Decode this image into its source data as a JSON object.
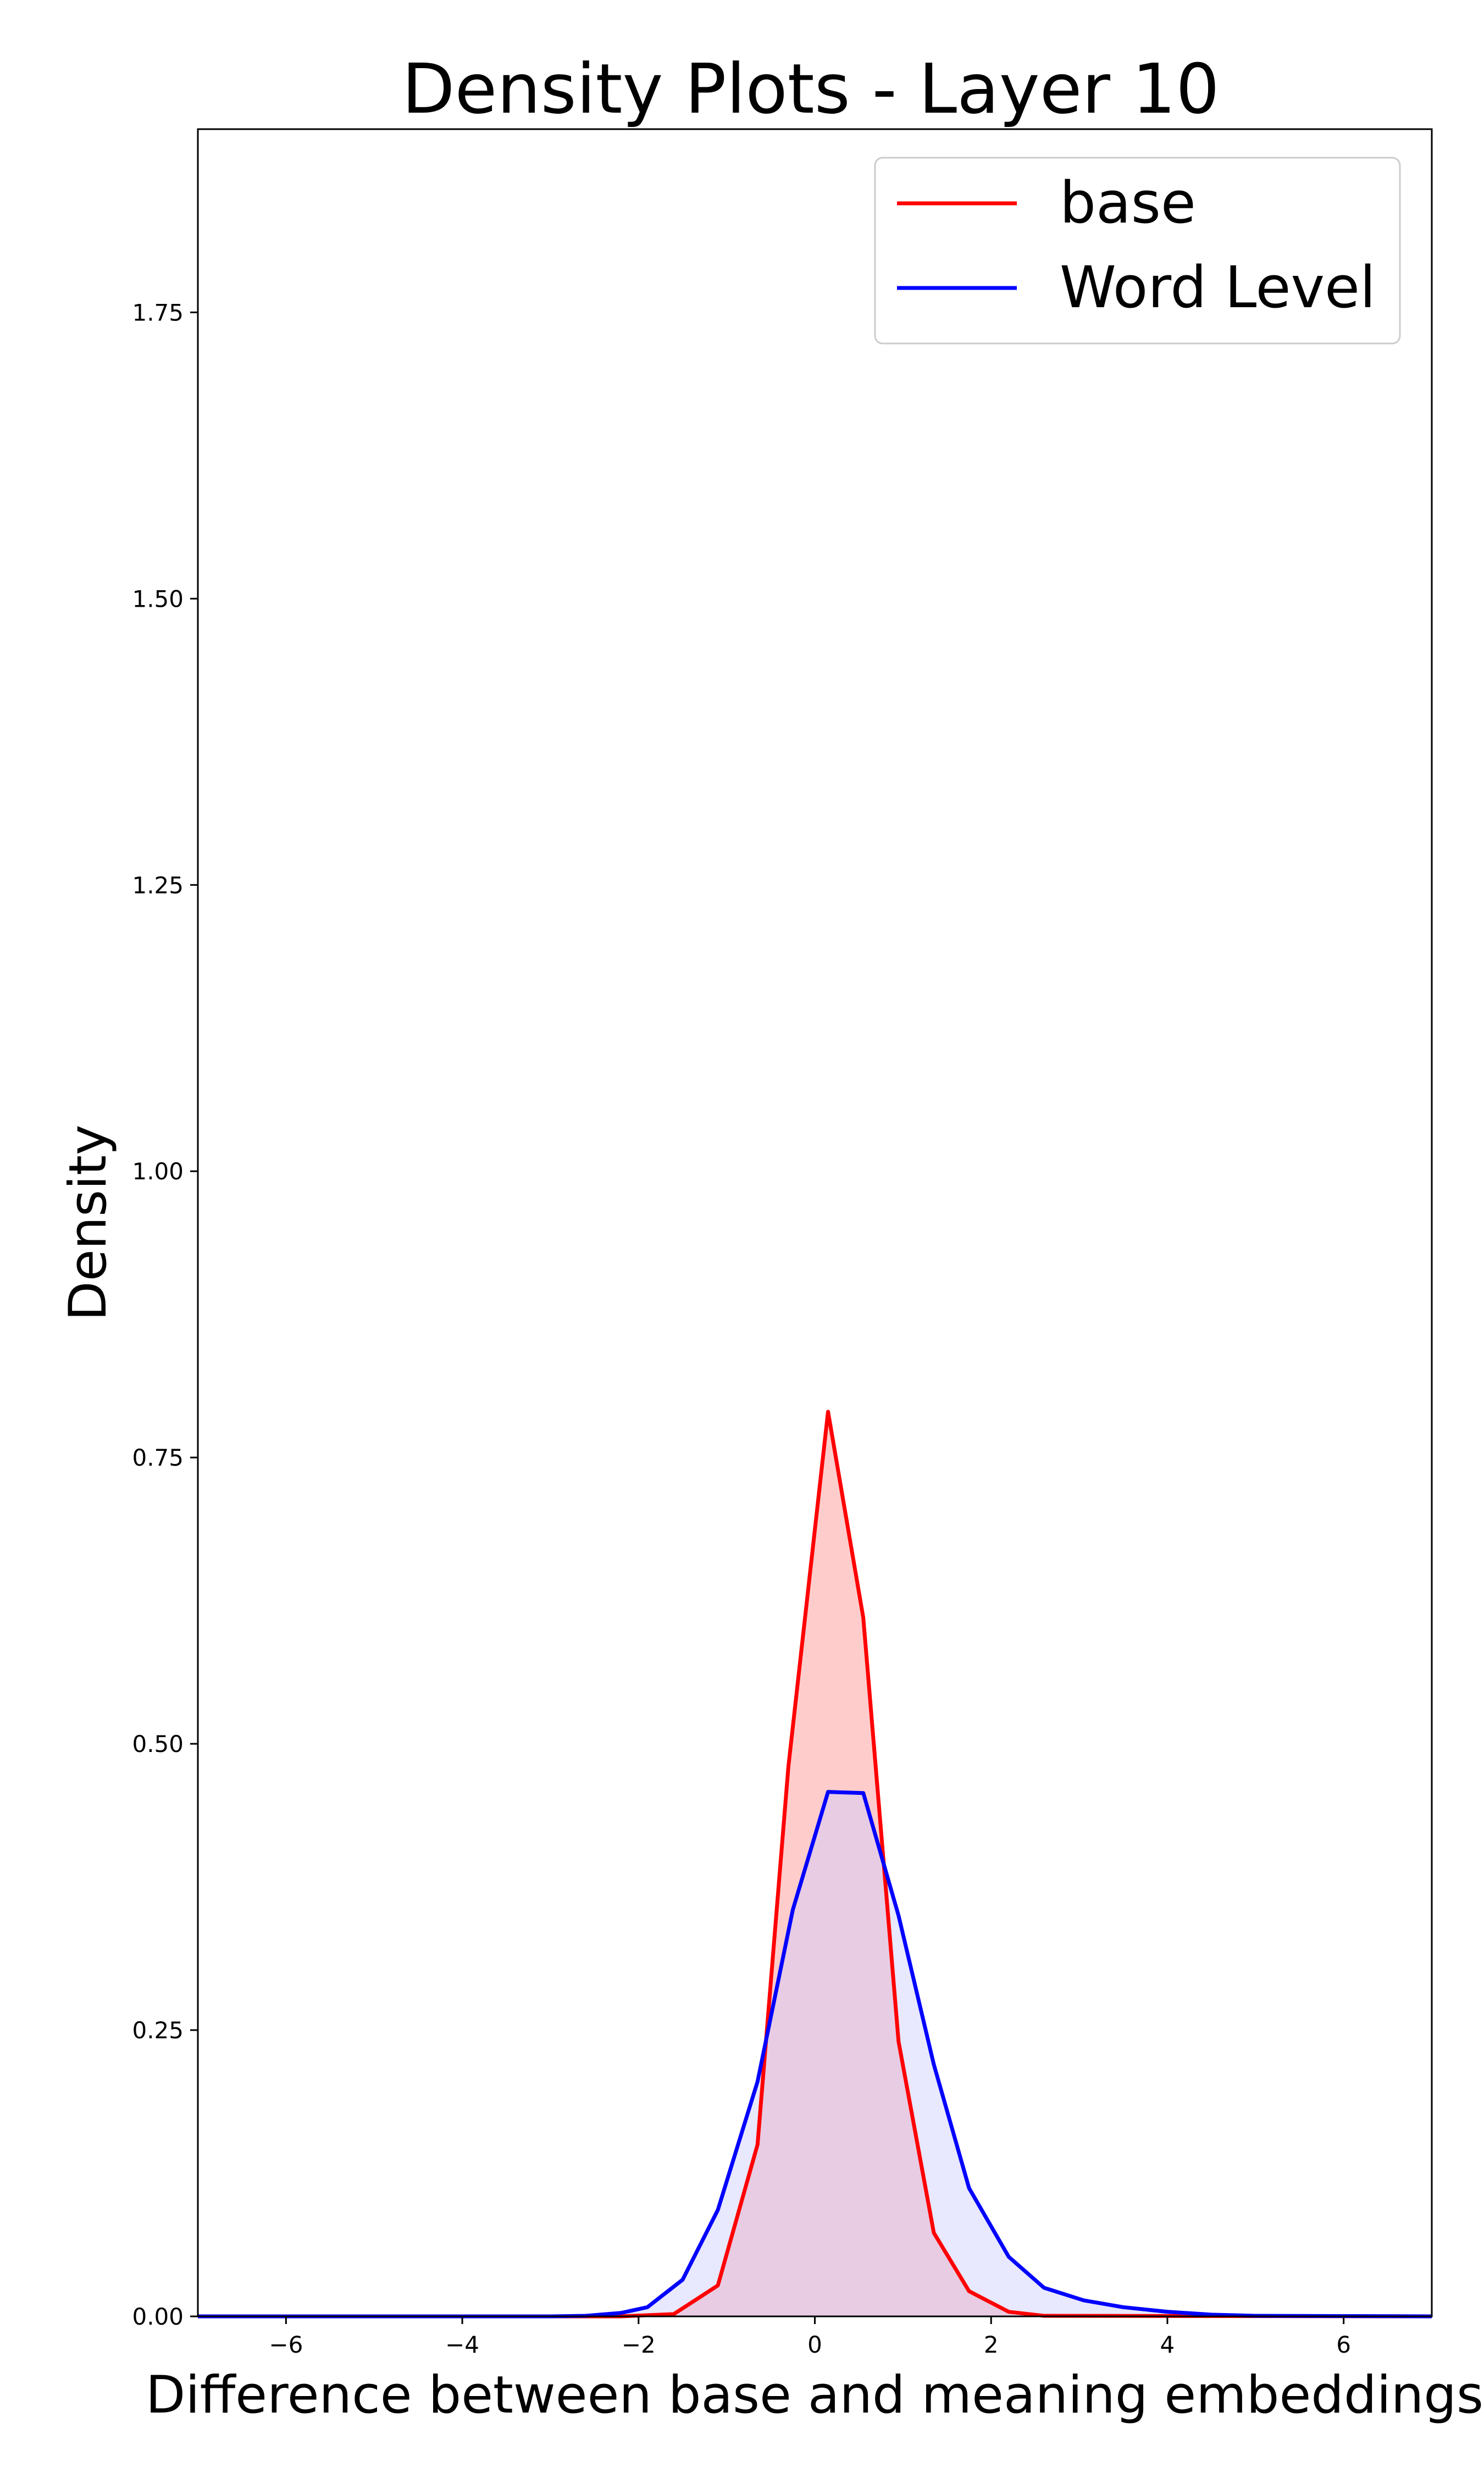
{
  "chart_data": {
    "type": "area",
    "title": "Density Plots - Layer 10",
    "xlabel": "Difference between base and meaning embeddings",
    "ylabel": "Density",
    "xlim": [
      -7,
      7
    ],
    "ylim": [
      0,
      1.91
    ],
    "xticks": [
      -6,
      -4,
      -2,
      0,
      2,
      4,
      6
    ],
    "xtick_labels": [
      "−6",
      "−4",
      "−2",
      "0",
      "2",
      "4",
      "6"
    ],
    "yticks": [
      0,
      0.25,
      0.5,
      0.75,
      1.0,
      1.25,
      1.5,
      1.75
    ],
    "ytick_labels": [
      "0.00",
      "0.25",
      "0.50",
      "0.75",
      "1.00",
      "1.25",
      "1.50",
      "1.75"
    ],
    "grid": false,
    "legend_position": "top-right",
    "series": [
      {
        "name": "base",
        "color": "#ff0000",
        "fill": "#ffcccc",
        "x": [
          -7,
          -2.2,
          -1.6,
          -1.1,
          -0.65,
          -0.3,
          0.15,
          0.55,
          0.95,
          1.35,
          1.75,
          2.2,
          2.6,
          7
        ],
        "y": [
          0,
          0,
          0.002,
          0.027,
          0.15,
          0.48,
          0.79,
          0.61,
          0.24,
          0.073,
          0.022,
          0.004,
          0.0005,
          0
        ]
      },
      {
        "name": "Word Level",
        "color": "#0000ff",
        "fill": "#ccccff",
        "x": [
          -7,
          -3.0,
          -2.6,
          -2.2,
          -1.9,
          -1.5,
          -1.1,
          -0.65,
          -0.25,
          0.15,
          0.55,
          0.95,
          1.35,
          1.75,
          2.2,
          2.6,
          3.05,
          3.5,
          4.0,
          4.5,
          5.0,
          7
        ],
        "y": [
          0,
          0,
          0.0005,
          0.003,
          0.008,
          0.032,
          0.093,
          0.205,
          0.355,
          0.458,
          0.457,
          0.35,
          0.22,
          0.112,
          0.052,
          0.025,
          0.014,
          0.008,
          0.004,
          0.0015,
          0.0005,
          0
        ]
      }
    ]
  }
}
